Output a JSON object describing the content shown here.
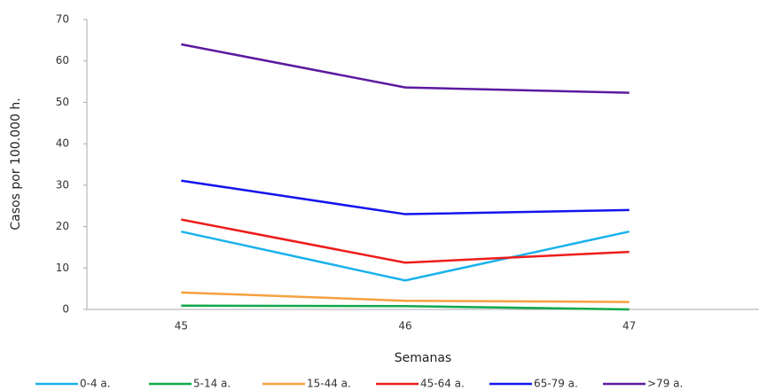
{
  "chart_data": {
    "type": "line",
    "x_label": "Semanas",
    "y_label": "Casos por 100.000 h.",
    "categories": [
      "45",
      "46",
      "47"
    ],
    "series": [
      {
        "name": "0-4 a.",
        "color": "#1ab2ec",
        "values": [
          18.8,
          7,
          18.8
        ]
      },
      {
        "name": "5-14 a.",
        "color": "#12a84a",
        "values": [
          0.9,
          0.8,
          0
        ]
      },
      {
        "name": "15-44 a.",
        "color": "#f7a040",
        "values": [
          4.1,
          2.1,
          1.8
        ]
      },
      {
        "name": "45-64 a.",
        "color": "#ee1c1c",
        "values": [
          21.7,
          11.3,
          13.9
        ]
      },
      {
        "name": "65-79 a.",
        "color": "#1414ee",
        "values": [
          31.1,
          23,
          24
        ]
      },
      {
        "name": ">79 a.",
        "color": "#5b1aa0",
        "values": [
          64,
          53.6,
          52.3
        ]
      }
    ],
    "ylim": [
      0,
      70
    ],
    "yticks": [
      0,
      10,
      20,
      30,
      40,
      50,
      60,
      70
    ],
    "legend": "bottom"
  }
}
